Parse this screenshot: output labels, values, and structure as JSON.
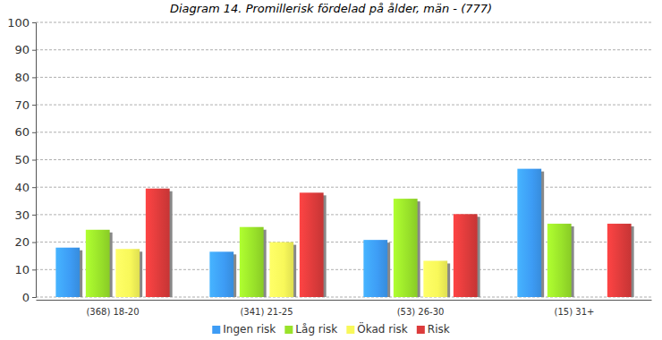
{
  "chart_data": {
    "type": "bar",
    "title": "Diagram 14. Promillerisk fördelad på ålder, män - (777)",
    "categories": [
      "(368) 18-20",
      "(341) 21-25",
      "(53) 26-30",
      "(15) 31+"
    ],
    "series": [
      {
        "name": "Ingen risk",
        "color": "#3d9cf5",
        "values": [
          18,
          16.5,
          20.8,
          46.7
        ]
      },
      {
        "name": "Låg risk",
        "color": "#99e22a",
        "values": [
          24.5,
          25.5,
          35.8,
          26.7
        ]
      },
      {
        "name": "Ökad risk",
        "color": "#f8f85a",
        "values": [
          17.5,
          20,
          13.2,
          0
        ]
      },
      {
        "name": "Risk",
        "color": "#dc3b3b",
        "values": [
          39.5,
          38,
          30.2,
          26.7
        ]
      }
    ],
    "ylim": [
      0,
      100
    ],
    "yticks": [
      0,
      10,
      20,
      30,
      40,
      50,
      60,
      70,
      80,
      90,
      100
    ],
    "grid": true,
    "legend": "bottom"
  }
}
